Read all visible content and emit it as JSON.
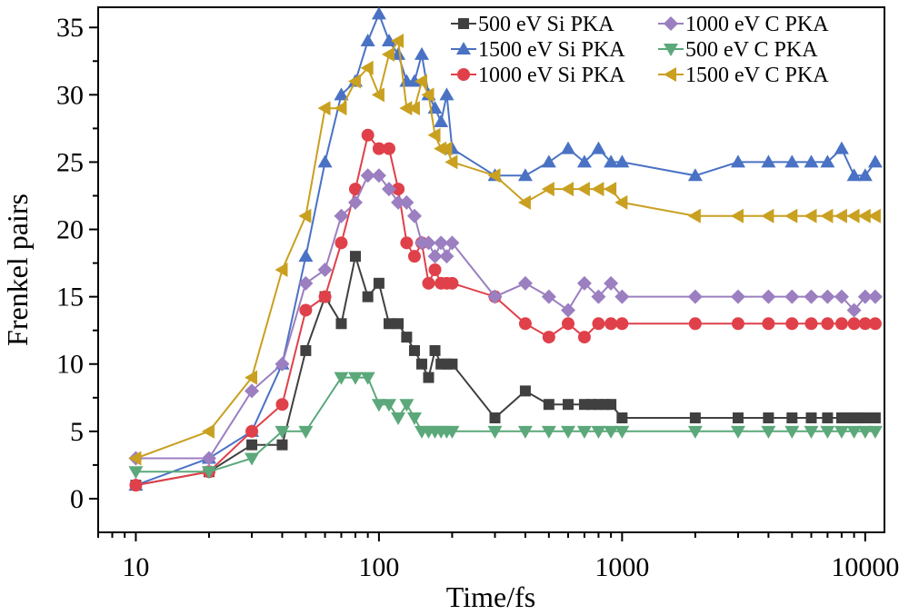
{
  "chart_data": {
    "type": "line",
    "xscale": "log",
    "xlabel": "Time/fs",
    "ylabel": "Frenkel pairs",
    "xlim": [
      7,
      12000
    ],
    "ylim": [
      -2.5,
      36.5
    ],
    "xticks": [
      10,
      100,
      1000,
      10000
    ],
    "xtick_labels": [
      "10",
      "100",
      "1000",
      "10000"
    ],
    "yticks": [
      0,
      5,
      10,
      15,
      20,
      25,
      30,
      35
    ],
    "ytick_labels": [
      "0",
      "5",
      "10",
      "15",
      "20",
      "25",
      "30",
      "35"
    ],
    "grid": false,
    "legend_placement": "top-right",
    "series": [
      {
        "name": "500 eV Si PKA",
        "color": "#404040",
        "marker": "square",
        "x": [
          10,
          20,
          30,
          40,
          50,
          60,
          70,
          80,
          90,
          100,
          110,
          120,
          130,
          140,
          150,
          160,
          170,
          180,
          190,
          200,
          300,
          400,
          500,
          600,
          700,
          750,
          800,
          850,
          900,
          1000,
          2000,
          3000,
          4000,
          5000,
          6000,
          7000,
          8000,
          8500,
          9000,
          9500,
          10000,
          11000
        ],
        "y": [
          1,
          2,
          4,
          4,
          11,
          15,
          13,
          18,
          15,
          16,
          13,
          13,
          12,
          11,
          10,
          9,
          11,
          10,
          10,
          10,
          6,
          8,
          7,
          7,
          7,
          7,
          7,
          7,
          7,
          6,
          6,
          6,
          6,
          6,
          6,
          6,
          6,
          6,
          6,
          6,
          6,
          6
        ]
      },
      {
        "name": "1500 eV Si PKA",
        "color": "#4a72c4",
        "marker": "triangle-up",
        "x": [
          10,
          20,
          30,
          40,
          50,
          60,
          70,
          80,
          90,
          100,
          110,
          120,
          130,
          140,
          150,
          160,
          170,
          180,
          190,
          200,
          300,
          400,
          500,
          600,
          700,
          800,
          900,
          1000,
          2000,
          3000,
          4000,
          5000,
          6000,
          7000,
          8000,
          9000,
          10000,
          11000
        ],
        "y": [
          1,
          3,
          5,
          10,
          18,
          25,
          30,
          31,
          34,
          36,
          34,
          33,
          31,
          31,
          33,
          30,
          29,
          28,
          30,
          26,
          24,
          24,
          25,
          26,
          25,
          26,
          25,
          25,
          24,
          25,
          25,
          25,
          25,
          25,
          26,
          24,
          24,
          25
        ]
      },
      {
        "name": "1000 eV Si PKA",
        "color": "#e0404a",
        "marker": "circle",
        "x": [
          10,
          20,
          30,
          40,
          50,
          60,
          70,
          80,
          90,
          100,
          110,
          120,
          130,
          140,
          150,
          160,
          170,
          180,
          190,
          200,
          300,
          400,
          500,
          600,
          700,
          800,
          900,
          1000,
          2000,
          3000,
          4000,
          5000,
          6000,
          7000,
          8000,
          9000,
          10000,
          11000
        ],
        "y": [
          1,
          2,
          5,
          7,
          14,
          15,
          19,
          23,
          27,
          26,
          26,
          23,
          19,
          18,
          19,
          16,
          17,
          16,
          16,
          16,
          15,
          13,
          12,
          13,
          12,
          13,
          13,
          13,
          13,
          13,
          13,
          13,
          13,
          13,
          13,
          13,
          13,
          13
        ]
      },
      {
        "name": "1000 eV C PKA",
        "color": "#9b7fc0",
        "marker": "diamond",
        "x": [
          10,
          20,
          30,
          40,
          50,
          60,
          70,
          80,
          90,
          100,
          110,
          120,
          130,
          140,
          150,
          160,
          170,
          180,
          190,
          200,
          300,
          400,
          500,
          600,
          700,
          800,
          900,
          1000,
          2000,
          3000,
          4000,
          5000,
          6000,
          7000,
          8000,
          9000,
          10000,
          11000
        ],
        "y": [
          3,
          3,
          8,
          10,
          16,
          17,
          21,
          22,
          24,
          24,
          23,
          22,
          22,
          21,
          19,
          19,
          18,
          19,
          18,
          19,
          15,
          16,
          15,
          14,
          16,
          15,
          16,
          15,
          15,
          15,
          15,
          15,
          15,
          15,
          15,
          14,
          15,
          15
        ]
      },
      {
        "name": "500 eV C PKA",
        "color": "#5ba87a",
        "marker": "triangle-down",
        "x": [
          10,
          20,
          30,
          40,
          50,
          70,
          80,
          90,
          100,
          110,
          120,
          130,
          140,
          150,
          160,
          170,
          180,
          190,
          200,
          300,
          400,
          500,
          600,
          700,
          800,
          900,
          1000,
          2000,
          3000,
          4000,
          5000,
          6000,
          7000,
          8000,
          9000,
          10000,
          11000
        ],
        "y": [
          2,
          2,
          3,
          5,
          5,
          9,
          9,
          9,
          7,
          7,
          6,
          7,
          6,
          5,
          5,
          5,
          5,
          5,
          5,
          5,
          5,
          5,
          5,
          5,
          5,
          5,
          5,
          5,
          5,
          5,
          5,
          5,
          5,
          5,
          5,
          5,
          5
        ]
      },
      {
        "name": "1500 eV C PKA",
        "color": "#c9a020",
        "marker": "triangle-left",
        "x": [
          10,
          20,
          30,
          40,
          50,
          60,
          70,
          80,
          90,
          100,
          110,
          120,
          130,
          140,
          150,
          160,
          170,
          180,
          190,
          200,
          300,
          400,
          500,
          600,
          700,
          800,
          900,
          1000,
          2000,
          3000,
          4000,
          5000,
          6000,
          7000,
          8000,
          9000,
          10000,
          11000
        ],
        "y": [
          3,
          5,
          9,
          17,
          21,
          29,
          29,
          31,
          32,
          30,
          33,
          34,
          29,
          29,
          31,
          30,
          27,
          26,
          26,
          25,
          24,
          22,
          23,
          23,
          23,
          23,
          23,
          22,
          21,
          21,
          21,
          21,
          21,
          21,
          21,
          21,
          21,
          21
        ]
      }
    ]
  }
}
